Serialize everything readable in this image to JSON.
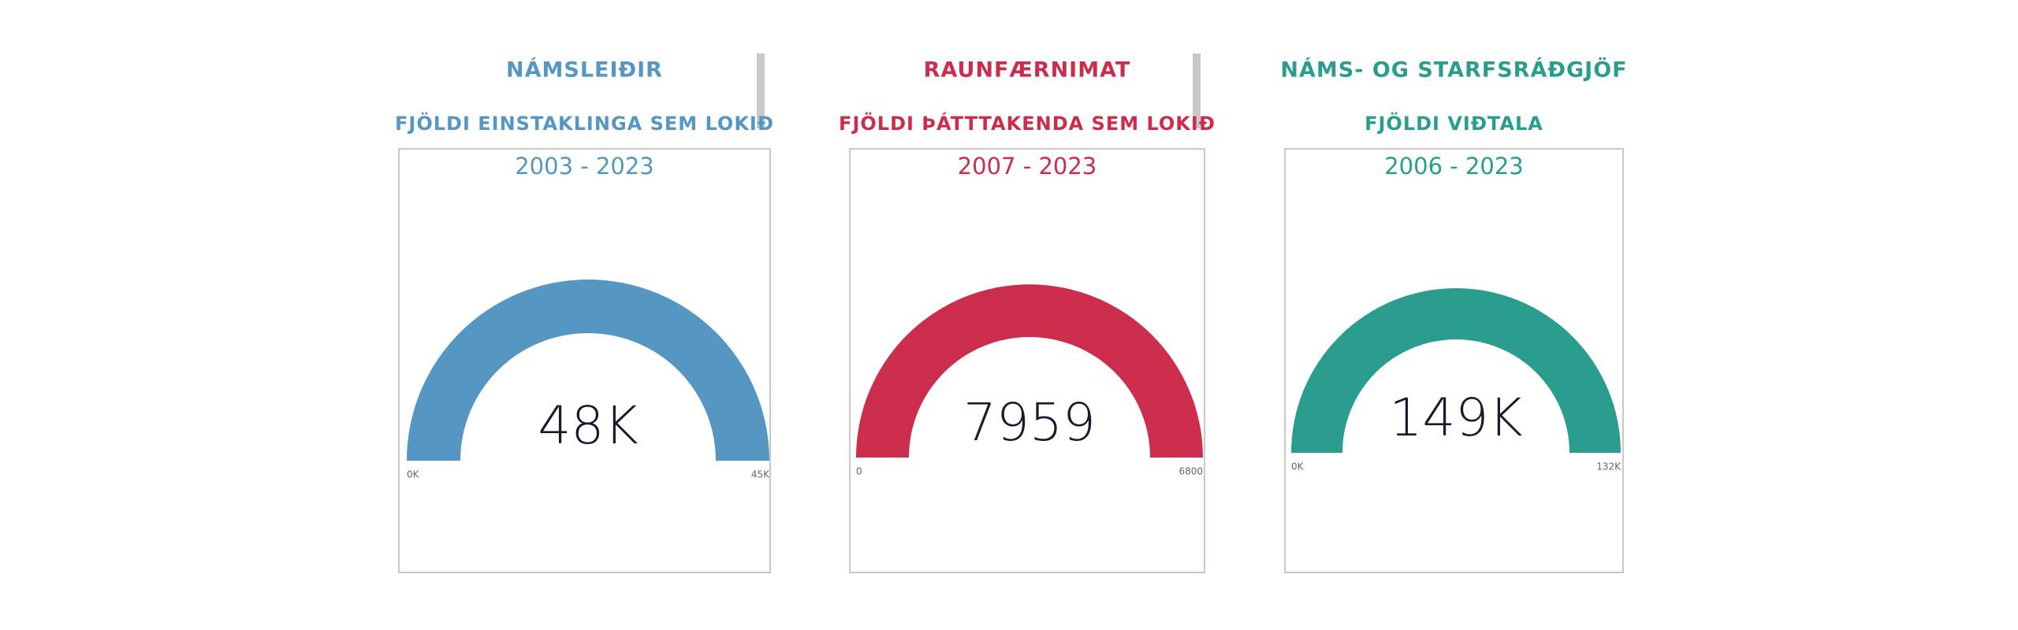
{
  "chart_data": [
    {
      "type": "gauge",
      "title": "NÁMSLEIÐIR",
      "subtitle": "FJÖLDI EINSTAKLINGA SEM LOKIÐ",
      "period": "2003 - 2023",
      "color": "#5597c2",
      "value": 48000,
      "value_label": "48K",
      "ylim": [
        0,
        45000
      ],
      "yticks": [
        {
          "value": 0,
          "label": "0K"
        },
        {
          "value": 45000,
          "label": "45K"
        }
      ]
    },
    {
      "type": "gauge",
      "title": "RAUNFÆRNIMAT",
      "subtitle": "FJÖLDI ÞÁTTTAKENDA SEM LOKIÐ",
      "period": "2007 - 2023",
      "color": "#cc2d4c",
      "value": 7959,
      "ylim": [
        0,
        6800
      ],
      "yticks": [
        0,
        6800
      ]
    },
    {
      "type": "gauge",
      "title": "NÁMS- OG STARFSRÁÐGJÖF",
      "subtitle": "FJÖLDI VIÐTALA",
      "period": "2006 - 2023",
      "color": "#2a9d8f",
      "value": 149000,
      "value_label": "149K",
      "ylim": [
        0,
        132000
      ],
      "yticks": [
        {
          "value": 0,
          "label": "0K"
        },
        {
          "value": 132000,
          "label": "132K"
        }
      ]
    }
  ]
}
